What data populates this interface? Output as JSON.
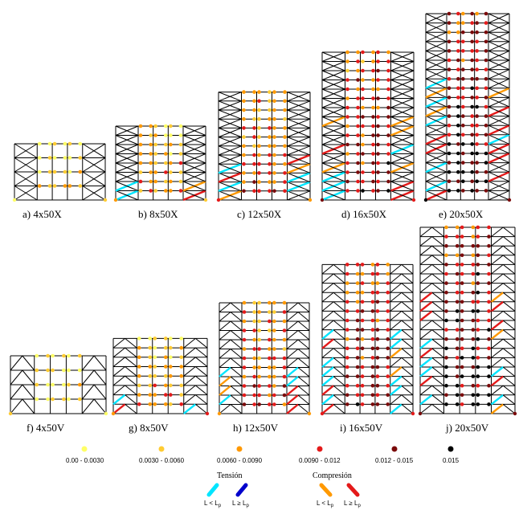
{
  "figure": {
    "panels": [
      {
        "label": "a) 4x50X",
        "stories": 4,
        "type": "X"
      },
      {
        "label": "b) 8x50X",
        "stories": 8,
        "type": "X"
      },
      {
        "label": "c) 12x50X",
        "stories": 12,
        "type": "X"
      },
      {
        "label": "d) 16x50X",
        "stories": 16,
        "type": "X"
      },
      {
        "label": "e) 20x50X",
        "stories": 20,
        "type": "X"
      },
      {
        "label": "f) 4x50V",
        "stories": 4,
        "type": "V"
      },
      {
        "label": "g) 8x50V",
        "stories": 8,
        "type": "V"
      },
      {
        "label": "h) 12x50V",
        "stories": 12,
        "type": "V"
      },
      {
        "label": "i) 16x50V",
        "stories": 16,
        "type": "V"
      },
      {
        "label": "j) 20x50V",
        "stories": 20,
        "type": "V"
      }
    ],
    "legend": {
      "rotation_ranges": [
        {
          "label": "0.00 - 0.0030",
          "color": "#ffff66"
        },
        {
          "label": "0.0030 - 0.0060",
          "color": "#ffcc33"
        },
        {
          "label": "0.0060 - 0.0090",
          "color": "#ff9900"
        },
        {
          "label": "0.0090 - 0.012",
          "color": "#e41a1a"
        },
        {
          "label": "0.012 - 0.015",
          "color": "#7a0a0a"
        },
        {
          "label": "0.015",
          "color": "#000000"
        }
      ],
      "tension": {
        "title": "Tensión",
        "short_label": "L < L",
        "long_label": "L ≥ L",
        "subscript": "p",
        "short_color": "#00e5ff",
        "long_color": "#0000cc"
      },
      "compression": {
        "title": "Compresión",
        "short_label": "L < L",
        "long_label": "L ≥ L",
        "subscript": "p",
        "short_color": "#ff9900",
        "long_color": "#e41a1a"
      }
    }
  }
}
